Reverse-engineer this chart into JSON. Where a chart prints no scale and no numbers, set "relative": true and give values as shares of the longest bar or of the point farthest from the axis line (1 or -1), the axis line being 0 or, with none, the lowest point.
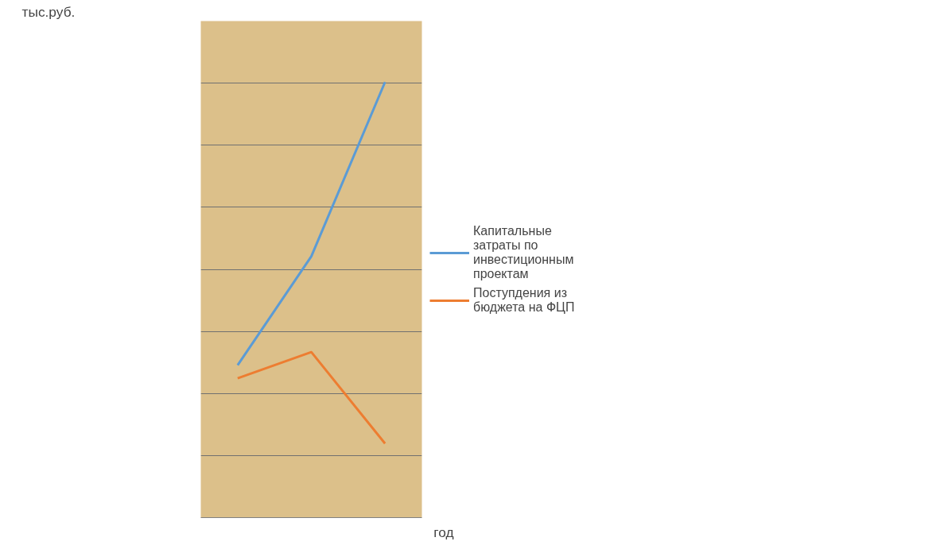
{
  "chart_data": {
    "type": "line",
    "relative": true,
    "annotations": [
      "тыс.руб."
    ],
    "xlabel": "год",
    "categories": [
      null,
      null,
      null
    ],
    "series": [
      {
        "name": "Капитальные затраты по инвестиционным проектам",
        "color": "#5b9bd5",
        "values": [
          0.35,
          0.6,
          1
        ]
      },
      {
        "name": "Поступдения из бюджета на ФЦП",
        "color": "#ed7d31",
        "values": [
          0.32,
          0.38,
          0.17
        ]
      }
    ],
    "grid": "y",
    "legend": "right",
    "marker": "none",
    "line_style": "solid"
  }
}
